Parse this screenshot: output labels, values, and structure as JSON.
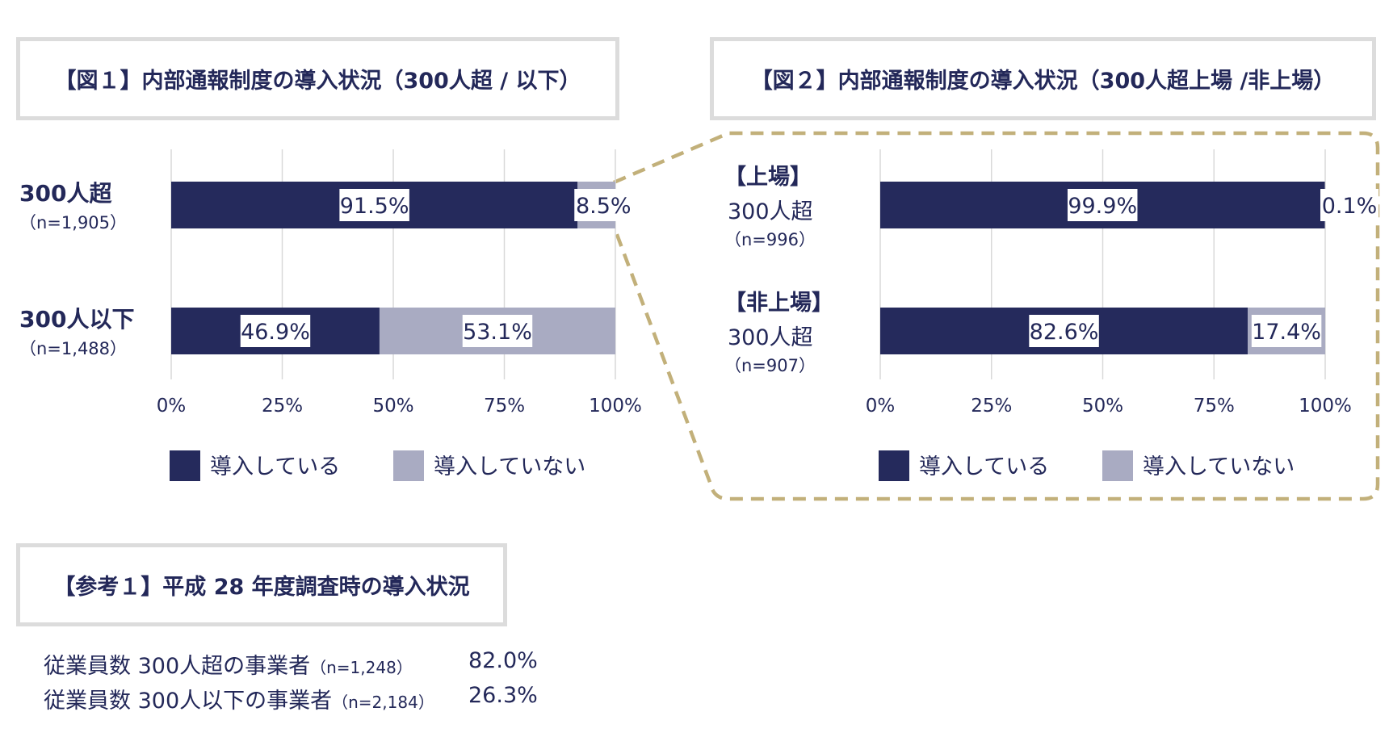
{
  "figure1": {
    "title": "【図１】内部通報制度の導入状況（300人超 / 以下）"
  },
  "figure2": {
    "title": "【図２】内部通報制度の導入状況（300人超上場 /非上場）"
  },
  "reference": {
    "title": "【参考１】平成 28 年度調査時の導入状況",
    "rows": [
      {
        "label": "従業員数 300人超の事業者",
        "n": "（n=1,248）",
        "value": "82.0%"
      },
      {
        "label": "従業員数 300人以下の事業者",
        "n": "（n=2,184）",
        "value": "26.3%"
      }
    ]
  },
  "colors": {
    "introduced": "#252a5c",
    "not_introduced": "#a9abc2",
    "grid": "#d9d9d9",
    "dashed_connector": "#c2b07a",
    "title_border": "#dcdcdc"
  },
  "chart_data": [
    {
      "type": "bar",
      "orientation": "horizontal",
      "stacked": true,
      "categories": [
        {
          "label": "300人超",
          "n": "（n=1,905）"
        },
        {
          "label": "300人以下",
          "n": "（n=1,488）"
        }
      ],
      "series": [
        {
          "name": "導入している",
          "values": [
            91.5,
            46.9
          ],
          "labels": [
            "91.5%",
            "46.9%"
          ]
        },
        {
          "name": "導入していない",
          "values": [
            8.5,
            53.1
          ],
          "labels": [
            "8.5%",
            "53.1%"
          ]
        }
      ],
      "xticks": [
        "0%",
        "25%",
        "50%",
        "75%",
        "100%"
      ],
      "xlim": [
        0,
        100
      ],
      "grid": true,
      "legend": "bottom"
    },
    {
      "type": "bar",
      "orientation": "horizontal",
      "stacked": true,
      "categories": [
        {
          "group": "【上場】",
          "label": "300人超",
          "n": "（n=996）"
        },
        {
          "group": "【非上場】",
          "label": "300人超",
          "n": "（n=907）"
        }
      ],
      "series": [
        {
          "name": "導入している",
          "values": [
            99.9,
            82.6
          ],
          "labels": [
            "99.9%",
            "82.6%"
          ]
        },
        {
          "name": "導入していない",
          "values": [
            0.1,
            17.4
          ],
          "labels": [
            "0.1%",
            "17.4%"
          ]
        }
      ],
      "xticks": [
        "0%",
        "25%",
        "50%",
        "75%",
        "100%"
      ],
      "xlim": [
        0,
        100
      ],
      "grid": true,
      "legend": "bottom"
    }
  ]
}
